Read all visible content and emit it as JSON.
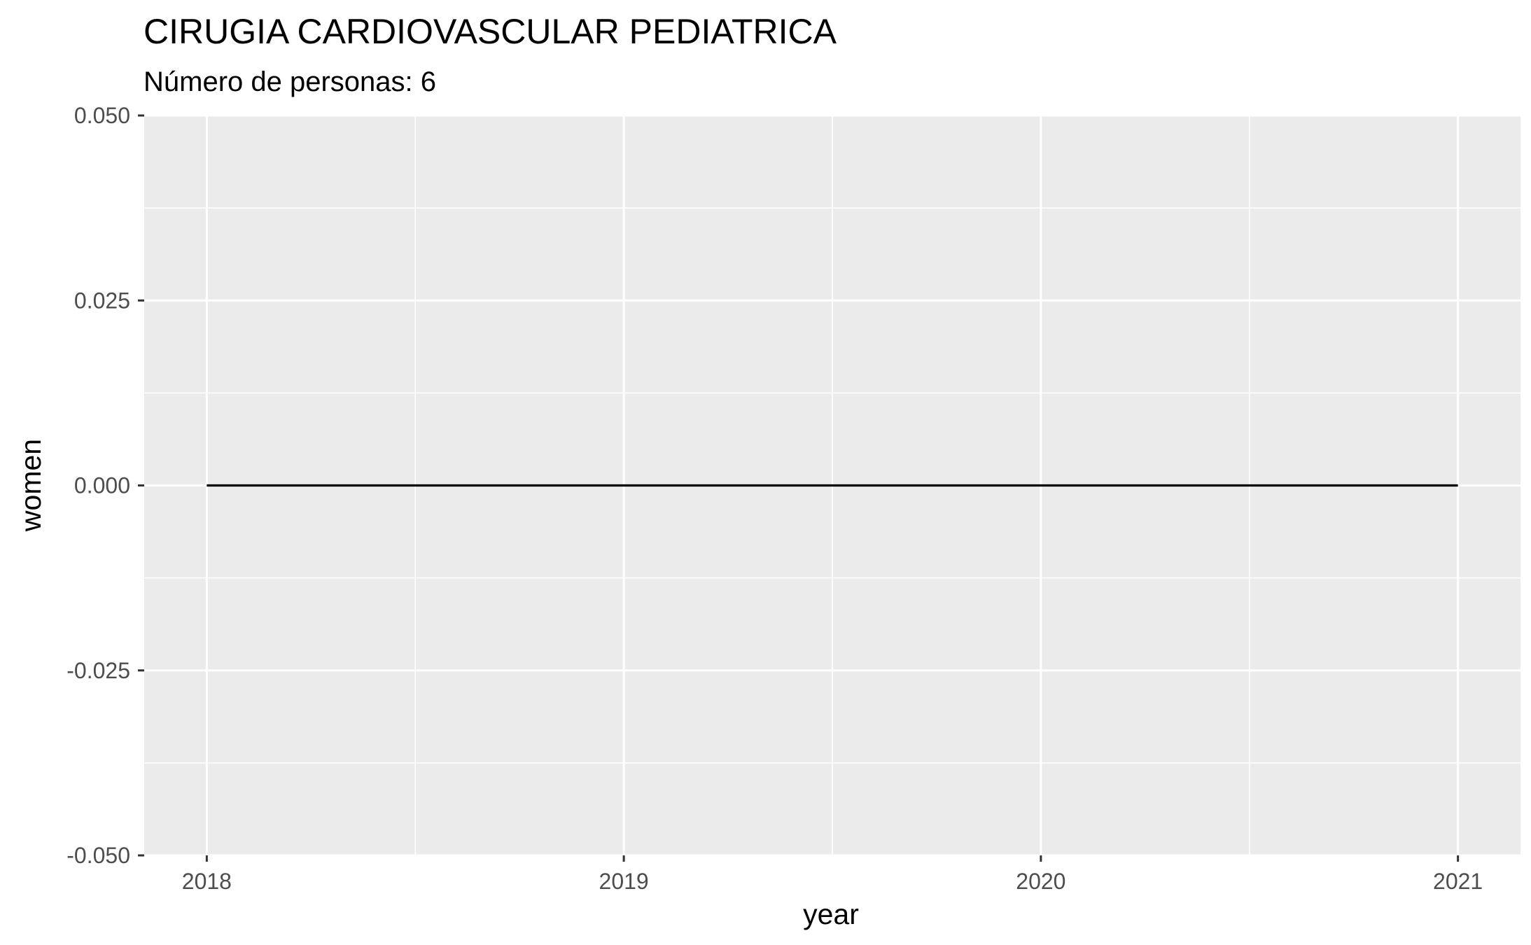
{
  "chart_data": {
    "type": "line",
    "title": "CIRUGIA CARDIOVASCULAR PEDIATRICA",
    "subtitle": "Número de personas: 6",
    "xlabel": "year",
    "ylabel": "women",
    "x": [
      2018,
      2019,
      2020,
      2021
    ],
    "x_ticks": [
      "2018",
      "2019",
      "2020",
      "2021"
    ],
    "xlim": [
      2017.85,
      2021.15
    ],
    "y_ticks": [
      "0.050",
      "0.025",
      "0.000",
      "-0.025",
      "-0.050"
    ],
    "ylim": [
      -0.05,
      0.05
    ],
    "series": [
      {
        "values": [
          0,
          0,
          0,
          0
        ],
        "color": "#000000"
      }
    ],
    "grid": true,
    "legend": "none",
    "panel_background": "#ebebeb",
    "grid_color": "#ffffff",
    "tick_label_color": "#4d4d4d"
  }
}
